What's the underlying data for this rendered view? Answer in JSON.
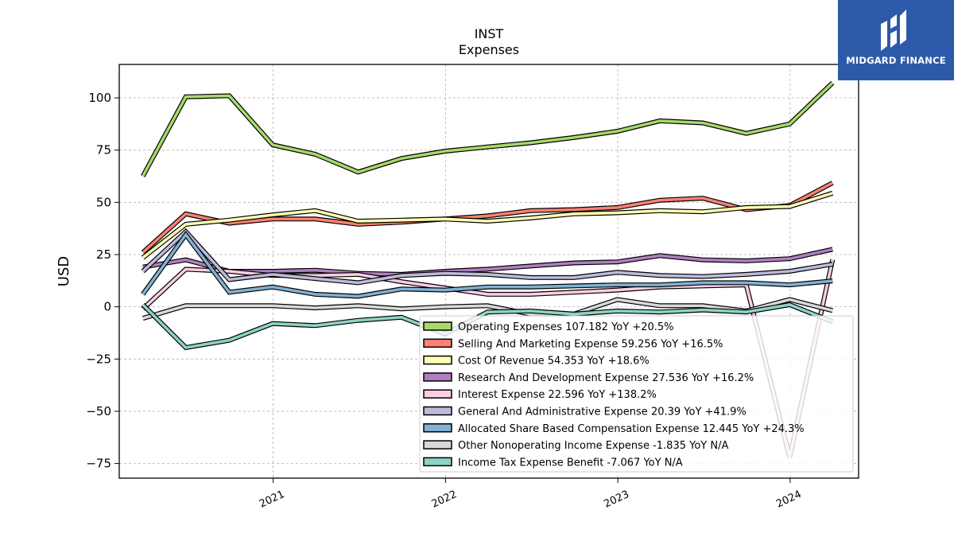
{
  "logo": {
    "text": "MIDGARD FINANCE"
  },
  "chart_data": {
    "type": "line",
    "title": "INST",
    "subtitle": "Expenses",
    "ylabel": "USD",
    "xlabel": "",
    "ylim": [
      -82,
      116
    ],
    "xlim": [
      "2020-02-10",
      "2024-05-25"
    ],
    "yticks": [
      100,
      75,
      50,
      25,
      0,
      -25,
      -50,
      -75
    ],
    "ytick_labels": [
      "100",
      "75",
      "50",
      "25",
      "0",
      "−25",
      "−50",
      "−75"
    ],
    "xticks": [
      "2021-01-01",
      "2022-01-01",
      "2023-01-01",
      "2024-01-01"
    ],
    "xtick_labels": [
      "2021",
      "2022",
      "2023",
      "2024"
    ],
    "grid": true,
    "legend_position": "lower-right",
    "x": [
      "2020-03-31",
      "2020-06-30",
      "2020-09-30",
      "2020-12-31",
      "2021-03-31",
      "2021-06-30",
      "2021-09-30",
      "2021-12-31",
      "2022-03-31",
      "2022-06-30",
      "2022-09-30",
      "2022-12-31",
      "2023-03-31",
      "2023-06-30",
      "2023-09-30",
      "2023-12-31",
      "2024-03-31"
    ],
    "series": [
      {
        "name": "Operating Expenses  107.182 YoY +20.5%",
        "color": "#a6d96a",
        "values": [
          62.5,
          100.5,
          101,
          77.5,
          73,
          64.5,
          71,
          74.5,
          76.5,
          78.5,
          81,
          84,
          89,
          88,
          83,
          87.5,
          107.2
        ]
      },
      {
        "name": "Selling And Marketing Expense  59.256 YoY +16.5%",
        "color": "#fb8072",
        "values": [
          26,
          44.5,
          40,
          42,
          42,
          39.5,
          40.5,
          42,
          43.5,
          46,
          46.5,
          47.5,
          51,
          52,
          46.5,
          48.5,
          59.3
        ]
      },
      {
        "name": "Cost Of Revenue  54.353 YoY +18.6%",
        "color": "#ffffb3",
        "values": [
          23.5,
          39.5,
          41.5,
          44,
          46,
          41,
          41.5,
          42,
          41,
          42.5,
          44.5,
          45,
          46,
          45.5,
          47.5,
          48,
          54.4
        ]
      },
      {
        "name": "Research And Development Expense  27.536 YoY +16.2%",
        "color": "#b07fc0",
        "values": [
          19,
          22.5,
          17,
          17,
          17.5,
          16,
          15.5,
          17,
          18,
          19.5,
          21,
          21.5,
          24.5,
          22.5,
          22,
          23,
          27.5
        ]
      },
      {
        "name": "Interest Expense  22.596 YoY +138.2%",
        "color": "#fccde5",
        "values": [
          -1,
          18,
          17,
          15,
          15,
          15.5,
          12,
          9,
          6,
          6,
          7,
          8,
          9.5,
          10,
          10.5,
          -72,
          22.6
        ]
      },
      {
        "name": "General And Administrative Expense  20.39 YoY +41.9%",
        "color": "#bebada",
        "values": [
          17,
          36,
          13,
          15.5,
          13.5,
          11.5,
          15,
          16,
          15.5,
          14,
          14,
          16.5,
          15,
          14.5,
          15.5,
          17,
          20.4
        ]
      },
      {
        "name": "Allocated Share Based Compensation Expense  12.445 YoY +24.3%",
        "color": "#80b1d3",
        "values": [
          6,
          34.5,
          7,
          9.5,
          6,
          5,
          8.5,
          8,
          9.5,
          9.5,
          10,
          10.5,
          10.5,
          11.5,
          11.5,
          10.5,
          12.4
        ]
      },
      {
        "name": "Other Nonoperating Income Expense  -1.835 YoY N/A",
        "color": "#d9d9d9",
        "values": [
          -5.5,
          0.5,
          0.5,
          0.5,
          -0.5,
          0.5,
          -1,
          0,
          0.5,
          -3.5,
          -3.5,
          3.5,
          0.5,
          0.5,
          -2,
          3.5,
          -1.8
        ]
      },
      {
        "name": "Income Tax Expense Benefit  -7.067 YoY N/A",
        "color": "#8dd3c7",
        "values": [
          1,
          -19.5,
          -16,
          -8,
          -9,
          -6.5,
          -5,
          -13,
          -2.5,
          -2,
          -3.5,
          -2,
          -2.5,
          -1.5,
          -2.5,
          1,
          -7.1
        ]
      }
    ]
  }
}
